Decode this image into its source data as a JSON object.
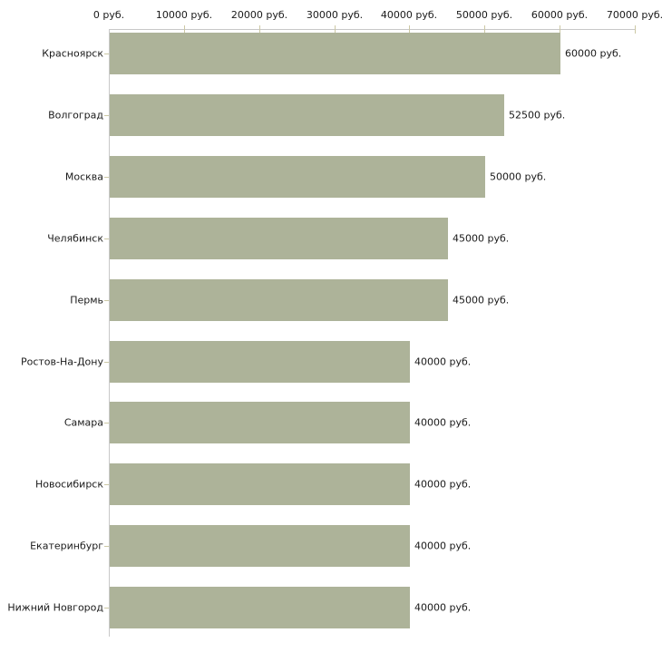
{
  "chart_data": {
    "type": "bar",
    "orientation": "horizontal",
    "title": "",
    "categories": [
      "Красноярск",
      "Волгоград",
      "Москва",
      "Челябинск",
      "Пермь",
      "Ростов-На-Дону",
      "Самара",
      "Новосибирск",
      "Екатеринбург",
      "Нижний Новгород"
    ],
    "values": [
      60000,
      52500,
      50000,
      45000,
      45000,
      40000,
      40000,
      40000,
      40000,
      40000
    ],
    "value_labels": [
      "60000 руб.",
      "52500 руб.",
      "50000 руб.",
      "45000 руб.",
      "45000 руб.",
      "40000 руб.",
      "40000 руб.",
      "40000 руб.",
      "40000 руб.",
      "40000 руб."
    ],
    "x_axis": {
      "position": "top",
      "range": [
        0,
        70000
      ],
      "tick_values": [
        0,
        10000,
        20000,
        30000,
        40000,
        50000,
        60000,
        70000
      ],
      "tick_labels": [
        "0 руб.",
        "10000 руб.",
        "20000 руб.",
        "30000 руб.",
        "40000 руб.",
        "50000 руб.",
        "60000 руб.",
        "70000 руб."
      ]
    },
    "grid": false,
    "legend": false,
    "colors": {
      "bar": "#adb399",
      "axis_line": "#c8c8c8",
      "tick_mark": "#ccc8a4",
      "text": "#1a1a1a",
      "background": "#ffffff"
    }
  }
}
